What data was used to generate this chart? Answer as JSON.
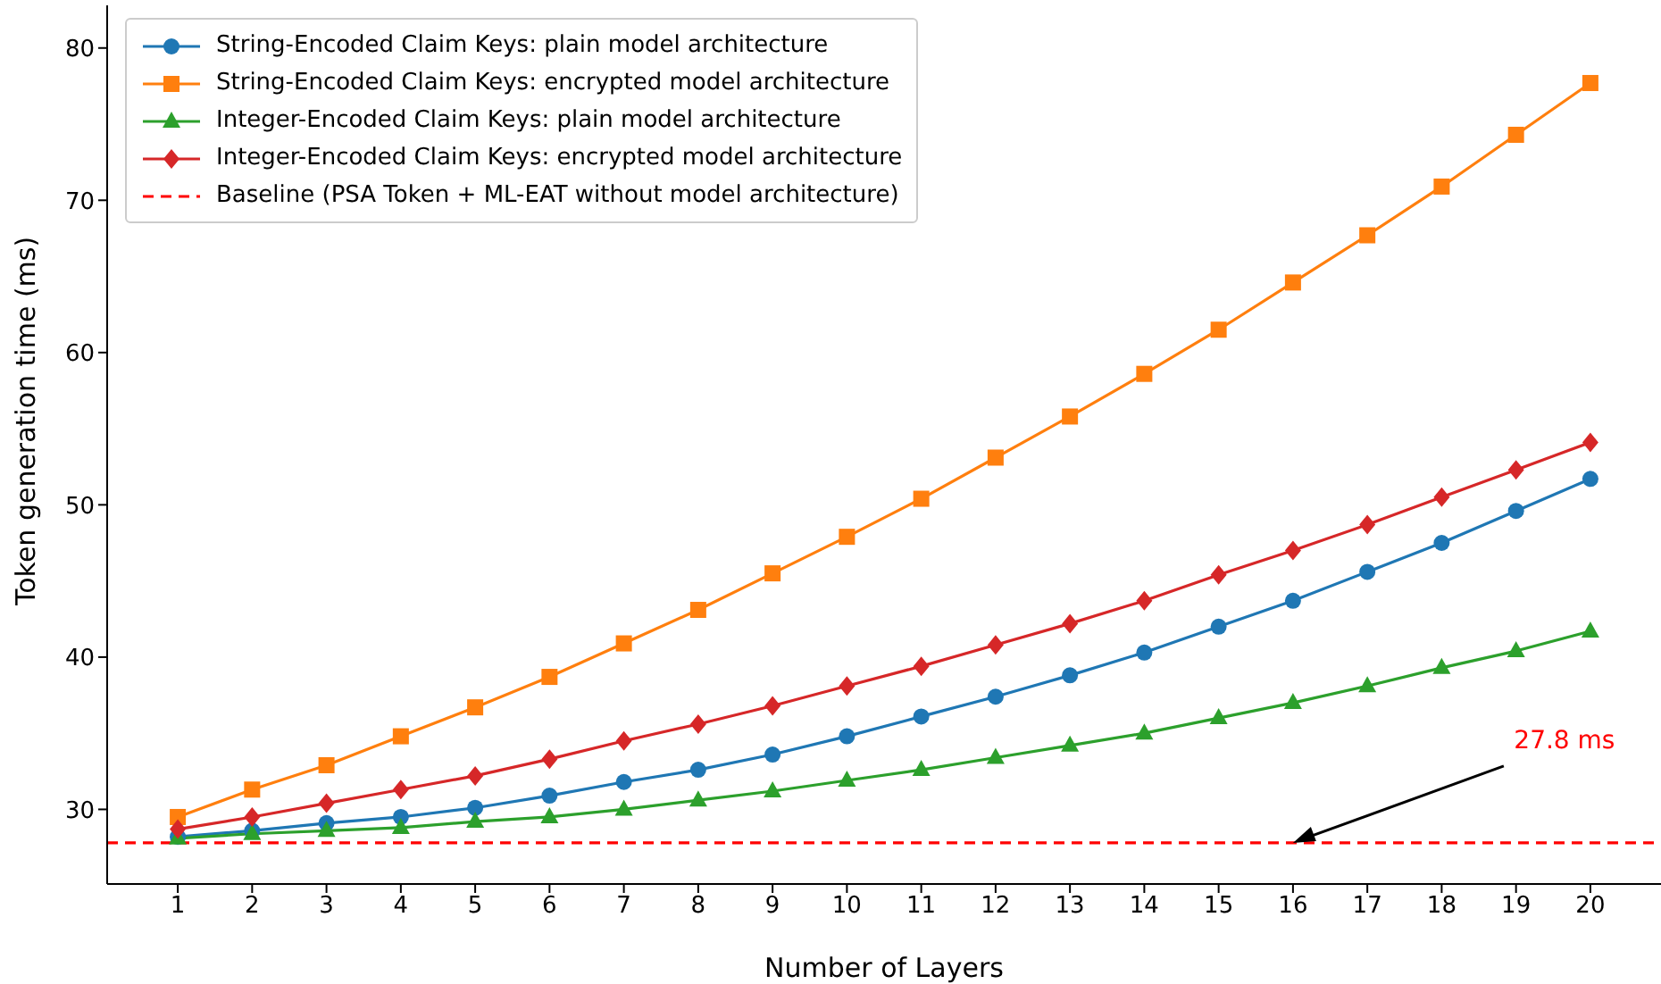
{
  "chart_data": {
    "type": "line",
    "xlabel": "Number of Layers",
    "ylabel": "Token generation time (ms)",
    "x": [
      1,
      2,
      3,
      4,
      5,
      6,
      7,
      8,
      9,
      10,
      11,
      12,
      13,
      14,
      15,
      16,
      17,
      18,
      19,
      20
    ],
    "xlim": [
      0.05,
      20.95
    ],
    "xticks": [
      1,
      2,
      3,
      4,
      5,
      6,
      7,
      8,
      9,
      10,
      11,
      12,
      13,
      14,
      15,
      16,
      17,
      18,
      19,
      20
    ],
    "ylim": [
      25.1,
      82.8
    ],
    "yticks": [
      30,
      40,
      50,
      60,
      70,
      80
    ],
    "series": [
      {
        "name": "String-Encoded Claim Keys: plain model architecture",
        "color": "#1f77b4",
        "marker": "circle",
        "values": [
          28.2,
          28.6,
          29.1,
          29.5,
          30.1,
          30.9,
          31.8,
          32.6,
          33.6,
          34.8,
          36.1,
          37.4,
          38.8,
          40.3,
          42.0,
          43.7,
          45.6,
          47.5,
          49.6,
          51.7
        ]
      },
      {
        "name": "String-Encoded Claim Keys: encrypted model architecture",
        "color": "#ff7f0e",
        "marker": "square",
        "values": [
          29.5,
          31.3,
          32.9,
          34.8,
          36.7,
          38.7,
          40.9,
          43.1,
          45.5,
          47.9,
          50.4,
          53.1,
          55.8,
          58.6,
          61.5,
          64.6,
          67.7,
          70.9,
          74.3,
          77.7
        ]
      },
      {
        "name": "Integer-Encoded Claim Keys: plain model architecture",
        "color": "#2ca02c",
        "marker": "triangle",
        "values": [
          28.1,
          28.4,
          28.6,
          28.8,
          29.2,
          29.5,
          30.0,
          30.6,
          31.2,
          31.9,
          32.6,
          33.4,
          34.2,
          35.0,
          36.0,
          37.0,
          38.1,
          39.3,
          40.4,
          41.7
        ]
      },
      {
        "name": "Integer-Encoded Claim Keys: encrypted model architecture",
        "color": "#d62728",
        "marker": "diamond",
        "values": [
          28.7,
          29.5,
          30.4,
          31.3,
          32.2,
          33.3,
          34.5,
          35.6,
          36.8,
          38.1,
          39.4,
          40.8,
          42.2,
          43.7,
          45.4,
          47.0,
          48.7,
          50.5,
          52.3,
          54.1
        ]
      }
    ],
    "ref_lines": [
      {
        "axis": "y",
        "value": 27.8,
        "label": "Baseline (PSA Token + ML-EAT without model architecture)",
        "color": "#ff0000",
        "line_style": "dashed"
      }
    ],
    "annotations": [
      {
        "text": "27.8 ms",
        "x": 16,
        "y": 27.8
      }
    ],
    "legend": "top left",
    "grid": false,
    "line_style": "solid"
  }
}
